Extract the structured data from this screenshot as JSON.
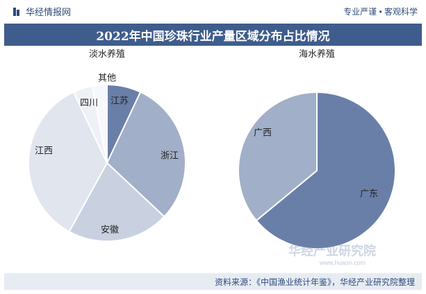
{
  "header": {
    "brand": "华经情报网",
    "slogan": "专业严谨 • 客观科学"
  },
  "title": "2022年中国珍珠行业产量区域分布占比情况",
  "chart_data": [
    {
      "type": "pie",
      "title": "淡水养殖",
      "labels": [
        "江苏",
        "浙江",
        "安徽",
        "江西",
        "四川",
        "其他"
      ],
      "values": [
        7,
        30,
        21,
        35,
        4,
        3
      ],
      "colors": [
        "#6a7fa8",
        "#a2afc8",
        "#c9d0e0",
        "#e0e5ee",
        "#eef1f6",
        "#f7f8fb"
      ]
    },
    {
      "type": "pie",
      "title": "海水养殖",
      "labels": [
        "广东",
        "广西"
      ],
      "values": [
        64,
        36
      ],
      "colors": [
        "#6a7fa8",
        "#a2afc8"
      ]
    }
  ],
  "watermark": "华经产业研究院",
  "watermark_url": "www.huaon.com",
  "footer": {
    "source": "资料来源：《中国渔业统计年鉴》，华经产业研究院整理"
  }
}
